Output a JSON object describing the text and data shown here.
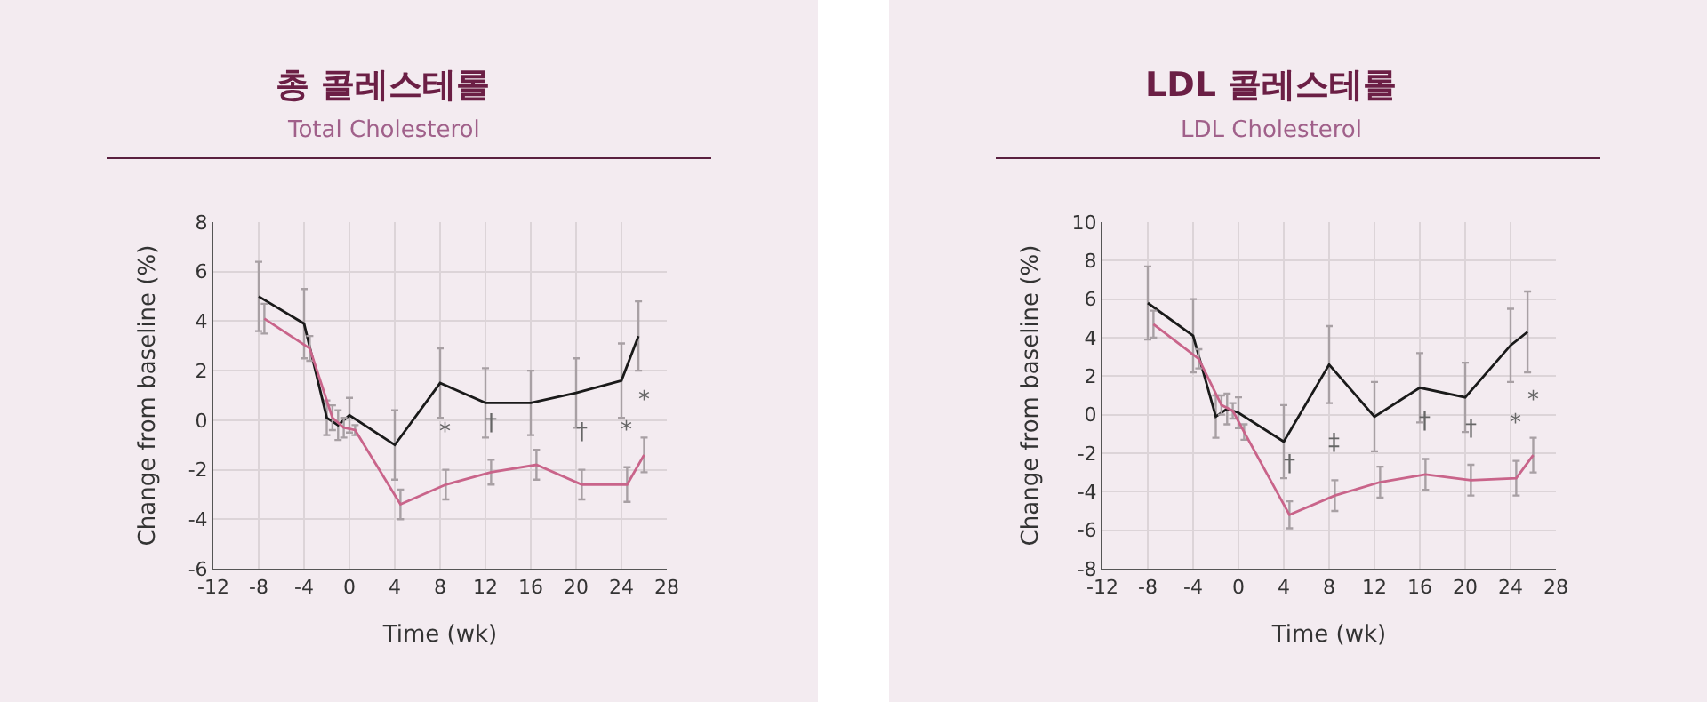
{
  "chart_data": [
    {
      "type": "line",
      "title": "총 콜레스테롤",
      "subtitle": "Total Cholesterol",
      "xlabel": "Time (wk)",
      "ylabel": "Change from baseline (%)",
      "xlim": [
        -12,
        28
      ],
      "xticks": [
        -12,
        -8,
        -4,
        0,
        4,
        8,
        12,
        16,
        20,
        24,
        28
      ],
      "ylim": [
        -6,
        8
      ],
      "yticks": [
        -6,
        -4,
        -2,
        0,
        2,
        4,
        6,
        8
      ],
      "grid": true,
      "series": [
        {
          "color": "#1a1a1a",
          "x": [
            -8,
            -4,
            -2,
            -1,
            0,
            4,
            8,
            12,
            16,
            20,
            24,
            25.5
          ],
          "values": [
            5.0,
            3.9,
            0.1,
            -0.2,
            0.2,
            -1.0,
            1.5,
            0.7,
            0.7,
            1.1,
            1.6,
            3.4
          ],
          "errors": [
            1.4,
            1.4,
            0.7,
            0.6,
            0.7,
            1.4,
            1.4,
            1.4,
            1.3,
            1.4,
            1.5,
            1.4
          ]
        },
        {
          "color": "#c9648a",
          "x": [
            -7.5,
            -3.5,
            -1.5,
            -0.5,
            0.5,
            4.5,
            8.5,
            12.5,
            16.5,
            20.5,
            24.5,
            26
          ],
          "values": [
            4.1,
            2.9,
            0.1,
            -0.3,
            -0.4,
            -3.4,
            -2.6,
            -2.1,
            -1.8,
            -2.6,
            -2.6,
            -1.4
          ],
          "errors": [
            0.6,
            0.5,
            0.5,
            0.4,
            0.2,
            0.6,
            0.6,
            0.5,
            0.6,
            0.6,
            0.7,
            0.7
          ]
        }
      ],
      "annotations": [
        {
          "text": "*",
          "x": 8.5,
          "y": -2.6
        },
        {
          "text": "†",
          "x": 12.5,
          "y": -2.1
        },
        {
          "text": "†",
          "x": 20.5,
          "y": -2.6
        },
        {
          "text": "*",
          "x": 24.5,
          "y": -2.6
        },
        {
          "text": "*",
          "x": 26,
          "y": -1.4
        }
      ]
    },
    {
      "type": "line",
      "title": "LDL 콜레스테롤",
      "subtitle": "LDL Cholesterol",
      "xlabel": "Time (wk)",
      "ylabel": "Change from baseline (%)",
      "xlim": [
        -12,
        28
      ],
      "xticks": [
        -12,
        -8,
        -4,
        0,
        4,
        8,
        12,
        16,
        20,
        24,
        28
      ],
      "ylim": [
        -8,
        10
      ],
      "yticks": [
        -8,
        -6,
        -4,
        -2,
        0,
        2,
        4,
        6,
        8,
        10
      ],
      "grid": true,
      "series": [
        {
          "color": "#1a1a1a",
          "x": [
            -8,
            -4,
            -2,
            -1,
            0,
            4,
            8,
            12,
            16,
            20,
            24,
            25.5
          ],
          "values": [
            5.8,
            4.1,
            -0.1,
            0.3,
            0.1,
            -1.4,
            2.6,
            -0.1,
            1.4,
            0.9,
            3.6,
            4.3
          ],
          "errors": [
            1.9,
            1.9,
            1.1,
            0.8,
            0.8,
            1.9,
            2.0,
            1.8,
            1.8,
            1.8,
            1.9,
            2.1
          ]
        },
        {
          "color": "#c9648a",
          "x": [
            -7.5,
            -3.5,
            -1.5,
            -0.5,
            0.5,
            4.5,
            8.5,
            12.5,
            16.5,
            20.5,
            24.5,
            26
          ],
          "values": [
            4.7,
            2.9,
            0.5,
            0.2,
            -0.9,
            -5.2,
            -4.2,
            -3.5,
            -3.1,
            -3.4,
            -3.3,
            -2.1
          ],
          "errors": [
            0.7,
            0.5,
            0.5,
            0.4,
            0.4,
            0.7,
            0.8,
            0.8,
            0.8,
            0.8,
            0.9,
            0.9
          ]
        }
      ],
      "annotations": [
        {
          "text": "†",
          "x": 4.5,
          "y": -5.2
        },
        {
          "text": "‡",
          "x": 8.5,
          "y": -4.2
        },
        {
          "text": "†",
          "x": 16.5,
          "y": -3.1
        },
        {
          "text": "†",
          "x": 20.5,
          "y": -3.4
        },
        {
          "text": "*",
          "x": 24.5,
          "y": -3.3
        },
        {
          "text": "*",
          "x": 26,
          "y": -2.1
        }
      ]
    }
  ]
}
